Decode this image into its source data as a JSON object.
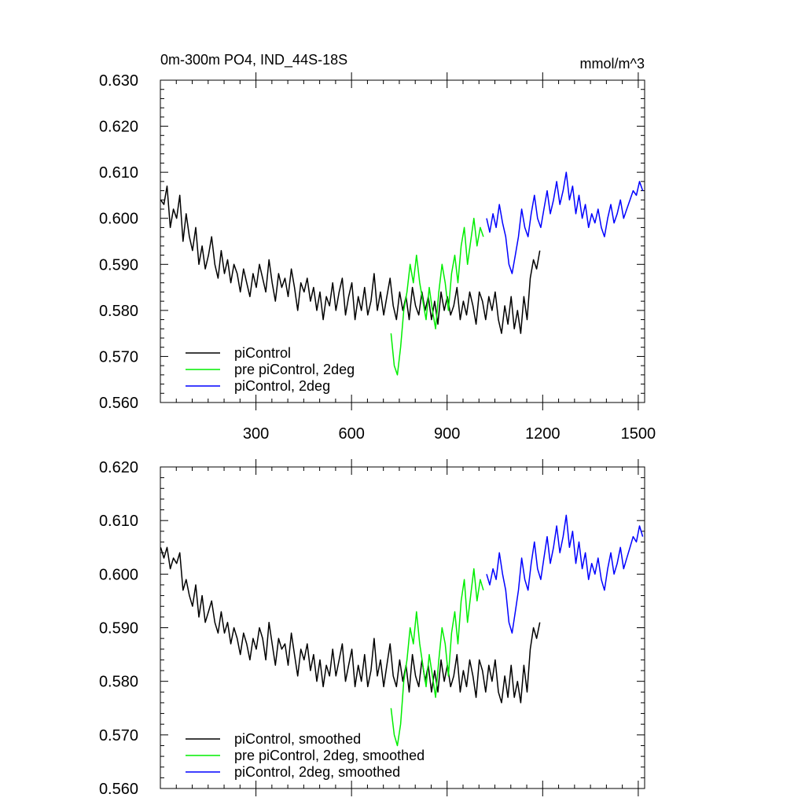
{
  "figure": {
    "left_title": "0m-300m PO4, IND_44S-18S",
    "right_title": "mmol/m^3"
  },
  "chart_data": [
    {
      "type": "line",
      "title": "0m-300m PO4, IND_44S-18S",
      "units": "mmol/m^3",
      "xlim": [
        0,
        1520
      ],
      "ylim": [
        0.56,
        0.63
      ],
      "xticks": [
        300,
        600,
        900,
        1200,
        1500
      ],
      "yticks": [
        "0.560",
        "0.570",
        "0.580",
        "0.590",
        "0.600",
        "0.610",
        "0.620",
        "0.630"
      ],
      "grid": false,
      "legend_position": "bottom-left",
      "series": [
        {
          "name": "piControl",
          "color": "#000000",
          "x_start": 1,
          "x_step": 10,
          "values": [
            0.604,
            0.603,
            0.607,
            0.598,
            0.602,
            0.6,
            0.605,
            0.595,
            0.601,
            0.596,
            0.593,
            0.598,
            0.59,
            0.594,
            0.589,
            0.592,
            0.596,
            0.59,
            0.587,
            0.593,
            0.588,
            0.591,
            0.586,
            0.59,
            0.588,
            0.584,
            0.589,
            0.586,
            0.583,
            0.588,
            0.585,
            0.59,
            0.587,
            0.584,
            0.591,
            0.586,
            0.582,
            0.588,
            0.585,
            0.587,
            0.583,
            0.589,
            0.585,
            0.58,
            0.586,
            0.584,
            0.587,
            0.582,
            0.585,
            0.58,
            0.584,
            0.578,
            0.583,
            0.581,
            0.586,
            0.58,
            0.584,
            0.587,
            0.579,
            0.583,
            0.586,
            0.578,
            0.583,
            0.58,
            0.585,
            0.579,
            0.582,
            0.588,
            0.58,
            0.584,
            0.579,
            0.583,
            0.587,
            0.581,
            0.578,
            0.584,
            0.58,
            0.583,
            0.578,
            0.585,
            0.581,
            0.579,
            0.584,
            0.58,
            0.583,
            0.578,
            0.582,
            0.577,
            0.584,
            0.58,
            0.583,
            0.579,
            0.581,
            0.585,
            0.578,
            0.582,
            0.579,
            0.584,
            0.581,
            0.577,
            0.584,
            0.582,
            0.578,
            0.583,
            0.58,
            0.584,
            0.578,
            0.575,
            0.581,
            0.577,
            0.583,
            0.576,
            0.58,
            0.575,
            0.583,
            0.578,
            0.587,
            0.591,
            0.589,
            0.593
          ]
        },
        {
          "name": "pre piControl, 2deg",
          "color": "#00ee00",
          "x_start": 724,
          "x_step": 10,
          "values": [
            0.575,
            0.568,
            0.566,
            0.572,
            0.58,
            0.584,
            0.59,
            0.586,
            0.592,
            0.586,
            0.582,
            0.578,
            0.585,
            0.58,
            0.576,
            0.584,
            0.59,
            0.586,
            0.58,
            0.588,
            0.592,
            0.586,
            0.594,
            0.598,
            0.59,
            0.595,
            0.6,
            0.594,
            0.598,
            0.596
          ]
        },
        {
          "name": "piControl, 2deg",
          "color": "#0000ff",
          "x_start": 1024,
          "x_step": 10,
          "values": [
            0.6,
            0.597,
            0.601,
            0.598,
            0.603,
            0.599,
            0.596,
            0.59,
            0.588,
            0.592,
            0.596,
            0.602,
            0.598,
            0.596,
            0.601,
            0.605,
            0.6,
            0.598,
            0.602,
            0.606,
            0.601,
            0.604,
            0.608,
            0.603,
            0.606,
            0.61,
            0.604,
            0.607,
            0.601,
            0.605,
            0.6,
            0.603,
            0.598,
            0.601,
            0.599,
            0.602,
            0.598,
            0.596,
            0.6,
            0.603,
            0.599,
            0.601,
            0.604,
            0.6,
            0.602,
            0.604,
            0.606,
            0.605,
            0.608,
            0.606
          ]
        }
      ]
    },
    {
      "type": "line",
      "xlim": [
        0,
        1520
      ],
      "ylim": [
        0.56,
        0.62
      ],
      "xticks": [
        300,
        600,
        900,
        1200,
        1500
      ],
      "yticks": [
        "0.560",
        "0.570",
        "0.580",
        "0.590",
        "0.600",
        "0.610",
        "0.620"
      ],
      "grid": false,
      "legend_position": "bottom-left",
      "series": [
        {
          "name": "piControl, smoothed",
          "color": "#000000",
          "x_start": 1,
          "x_step": 10,
          "values": [
            0.605,
            0.603,
            0.605,
            0.601,
            0.603,
            0.602,
            0.604,
            0.597,
            0.599,
            0.596,
            0.594,
            0.598,
            0.592,
            0.596,
            0.591,
            0.593,
            0.595,
            0.591,
            0.589,
            0.593,
            0.589,
            0.591,
            0.587,
            0.59,
            0.588,
            0.585,
            0.589,
            0.587,
            0.584,
            0.588,
            0.586,
            0.59,
            0.588,
            0.584,
            0.591,
            0.587,
            0.583,
            0.588,
            0.586,
            0.587,
            0.583,
            0.589,
            0.585,
            0.581,
            0.586,
            0.584,
            0.587,
            0.582,
            0.585,
            0.58,
            0.584,
            0.579,
            0.583,
            0.581,
            0.586,
            0.581,
            0.584,
            0.587,
            0.58,
            0.583,
            0.586,
            0.579,
            0.583,
            0.58,
            0.585,
            0.579,
            0.582,
            0.588,
            0.581,
            0.584,
            0.579,
            0.583,
            0.587,
            0.581,
            0.579,
            0.584,
            0.58,
            0.583,
            0.578,
            0.585,
            0.581,
            0.579,
            0.584,
            0.58,
            0.583,
            0.578,
            0.582,
            0.578,
            0.584,
            0.58,
            0.583,
            0.579,
            0.581,
            0.585,
            0.578,
            0.582,
            0.579,
            0.584,
            0.581,
            0.577,
            0.584,
            0.582,
            0.578,
            0.583,
            0.58,
            0.584,
            0.578,
            0.576,
            0.581,
            0.577,
            0.583,
            0.577,
            0.58,
            0.576,
            0.583,
            0.578,
            0.586,
            0.59,
            0.588,
            0.591
          ]
        },
        {
          "name": "pre piControl, 2deg, smoothed",
          "color": "#00ee00",
          "x_start": 724,
          "x_step": 10,
          "values": [
            0.575,
            0.57,
            0.568,
            0.572,
            0.58,
            0.584,
            0.59,
            0.587,
            0.593,
            0.587,
            0.583,
            0.579,
            0.585,
            0.581,
            0.577,
            0.584,
            0.59,
            0.587,
            0.581,
            0.589,
            0.593,
            0.587,
            0.595,
            0.599,
            0.591,
            0.596,
            0.601,
            0.595,
            0.599,
            0.597
          ]
        },
        {
          "name": "piControl, 2deg, smoothed",
          "color": "#0000ff",
          "x_start": 1024,
          "x_step": 10,
          "values": [
            0.6,
            0.598,
            0.601,
            0.599,
            0.604,
            0.6,
            0.597,
            0.591,
            0.589,
            0.593,
            0.597,
            0.603,
            0.599,
            0.597,
            0.602,
            0.606,
            0.601,
            0.599,
            0.603,
            0.607,
            0.602,
            0.605,
            0.609,
            0.604,
            0.607,
            0.611,
            0.605,
            0.608,
            0.602,
            0.606,
            0.601,
            0.604,
            0.599,
            0.602,
            0.6,
            0.603,
            0.599,
            0.597,
            0.601,
            0.604,
            0.6,
            0.602,
            0.605,
            0.601,
            0.603,
            0.605,
            0.607,
            0.606,
            0.609,
            0.607
          ]
        }
      ]
    }
  ]
}
